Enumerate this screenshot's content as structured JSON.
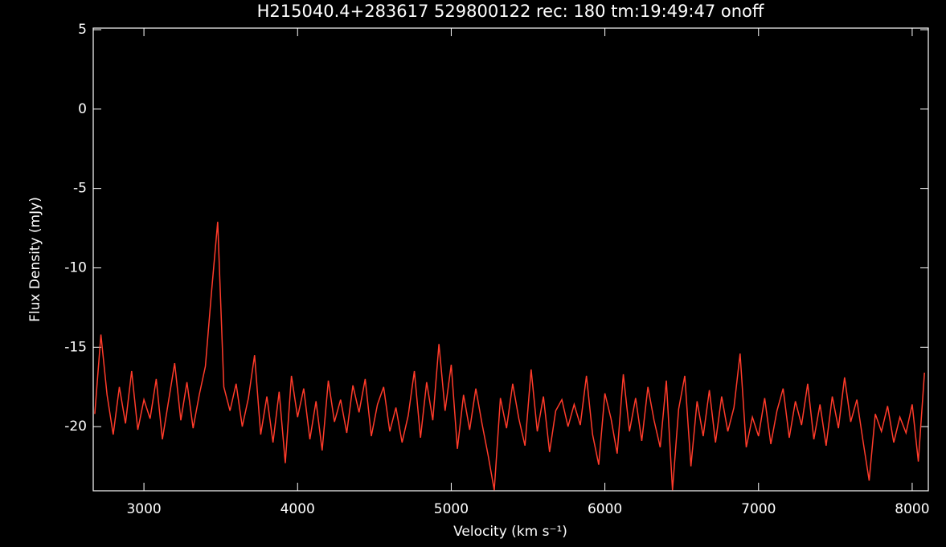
{
  "chart_data": {
    "type": "line",
    "title": "H215040.4+283617 529800122 rec: 180 tm:19:49:47 onoff",
    "x_label": "Velocity (km s⁻¹)",
    "y_label": "Flux Density (mJy)",
    "xlim": [
      2670,
      8105
    ],
    "ylim": [
      -24.04,
      5.1
    ],
    "xticks": [
      3000,
      4000,
      5000,
      6000,
      7000,
      8000
    ],
    "yticks": [
      5,
      0,
      -5,
      -10,
      -15,
      -20
    ],
    "x": [
      2680,
      2720,
      2760,
      2800,
      2840,
      2880,
      2920,
      2960,
      3000,
      3040,
      3080,
      3120,
      3160,
      3200,
      3240,
      3280,
      3320,
      3360,
      3400,
      3440,
      3480,
      3520,
      3560,
      3600,
      3640,
      3680,
      3720,
      3760,
      3800,
      3840,
      3880,
      3920,
      3960,
      4000,
      4040,
      4080,
      4120,
      4160,
      4200,
      4240,
      4280,
      4320,
      4360,
      4400,
      4440,
      4480,
      4520,
      4560,
      4600,
      4640,
      4680,
      4720,
      4760,
      4800,
      4840,
      4880,
      4920,
      4960,
      5000,
      5040,
      5080,
      5120,
      5160,
      5200,
      5240,
      5280,
      5320,
      5360,
      5400,
      5440,
      5480,
      5520,
      5560,
      5600,
      5640,
      5680,
      5720,
      5760,
      5800,
      5840,
      5880,
      5920,
      5960,
      6000,
      6040,
      6080,
      6120,
      6160,
      6200,
      6240,
      6280,
      6320,
      6360,
      6400,
      6440,
      6480,
      6520,
      6560,
      6600,
      6640,
      6680,
      6720,
      6760,
      6800,
      6840,
      6880,
      6920,
      6960,
      7000,
      7040,
      7080,
      7120,
      7160,
      7200,
      7240,
      7280,
      7320,
      7360,
      7400,
      7440,
      7480,
      7520,
      7560,
      7600,
      7640,
      7680,
      7720,
      7760,
      7800,
      7840,
      7880,
      7920,
      7960,
      8000,
      8040,
      8080
    ],
    "series": [
      {
        "name": "spectrum",
        "color": "#ff3b2a",
        "values": [
          -19.2,
          -14.2,
          -18.0,
          -20.5,
          -17.5,
          -19.8,
          -16.5,
          -20.2,
          -18.3,
          -19.5,
          -17.0,
          -20.8,
          -18.4,
          -16.0,
          -19.6,
          -17.2,
          -20.1,
          -18.0,
          -16.2,
          -11.5,
          -7.1,
          -17.5,
          -19.0,
          -17.3,
          -20.0,
          -18.2,
          -15.5,
          -20.5,
          -18.1,
          -21.0,
          -17.8,
          -22.3,
          -16.8,
          -19.4,
          -17.6,
          -20.8,
          -18.4,
          -21.5,
          -17.1,
          -19.7,
          -18.3,
          -20.4,
          -17.4,
          -19.1,
          -17.0,
          -20.6,
          -18.6,
          -17.5,
          -20.3,
          -18.8,
          -21.0,
          -19.3,
          -16.5,
          -20.7,
          -17.2,
          -19.6,
          -14.8,
          -19.0,
          -16.1,
          -21.4,
          -18.0,
          -20.2,
          -17.6,
          -19.8,
          -21.8,
          -24.0,
          -18.2,
          -20.1,
          -17.3,
          -19.5,
          -21.2,
          -16.4,
          -20.3,
          -18.1,
          -21.6,
          -19.0,
          -18.3,
          -20.0,
          -18.6,
          -19.9,
          -16.8,
          -20.5,
          -22.4,
          -17.9,
          -19.5,
          -21.7,
          -16.7,
          -20.3,
          -18.2,
          -20.9,
          -17.5,
          -19.6,
          -21.3,
          -17.1,
          -24.0,
          -18.9,
          -16.8,
          -22.5,
          -18.4,
          -20.6,
          -17.7,
          -21.0,
          -18.1,
          -20.3,
          -18.8,
          -15.4,
          -21.3,
          -19.4,
          -20.6,
          -18.2,
          -21.1,
          -19.0,
          -17.6,
          -20.7,
          -18.4,
          -19.9,
          -17.3,
          -20.8,
          -18.6,
          -21.2,
          -18.1,
          -20.1,
          -16.9,
          -19.7,
          -18.3,
          -20.9,
          -23.4,
          -19.2,
          -20.3,
          -18.7,
          -21.0,
          -19.4,
          -20.4,
          -18.6,
          -22.2,
          -16.6
        ]
      }
    ]
  }
}
